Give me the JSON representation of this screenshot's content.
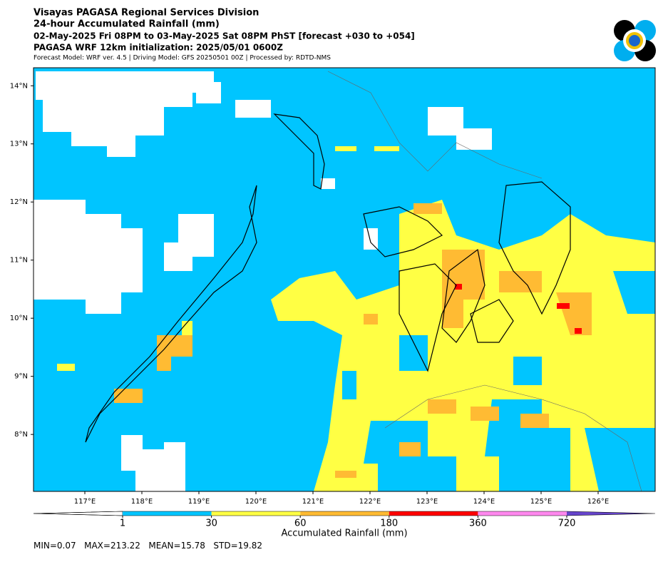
{
  "header": {
    "lines": [
      "Visayas PAGASA Regional Services Division",
      "24-hour Accumulated Rainfall (mm)",
      "02-May-2025 Fri 08PM to 03-May-2025 Sat 08PM PhST [forecast +030 to +054]",
      "PAGASA WRF 12km initialization: 2025/05/01 0600Z"
    ],
    "model_line": "Forecast Model: WRF ver. 4.5 | Driving Model: GFS 20250501 00Z | Processed by: RDTD-NMS"
  },
  "map": {
    "xlim": [
      116.1,
      127.0
    ],
    "ylim": [
      7.02,
      14.31
    ],
    "xticks": [
      {
        "value": 117,
        "label": "117°E"
      },
      {
        "value": 118,
        "label": "118°E"
      },
      {
        "value": 119,
        "label": "119°E"
      },
      {
        "value": 120,
        "label": "120°E"
      },
      {
        "value": 121,
        "label": "121°E"
      },
      {
        "value": 122,
        "label": "122°E"
      },
      {
        "value": 123,
        "label": "123°E"
      },
      {
        "value": 124,
        "label": "124°E"
      },
      {
        "value": 125,
        "label": "125°E"
      },
      {
        "value": 126,
        "label": "126°E"
      }
    ],
    "yticks": [
      {
        "value": 8,
        "label": "8°N"
      },
      {
        "value": 9,
        "label": "9°N"
      },
      {
        "value": 10,
        "label": "10°N"
      },
      {
        "value": 11,
        "label": "11°N"
      },
      {
        "value": 12,
        "label": "12°N"
      },
      {
        "value": 13,
        "label": "13°N"
      },
      {
        "value": 14,
        "label": "14°N"
      }
    ]
  },
  "colorbar": {
    "title": "Accumulated Rainfall (mm)",
    "ticks": [
      1,
      30,
      60,
      180,
      360,
      720
    ],
    "under_color": "#ffffff",
    "colors": [
      "#00c5ff",
      "#ffff44",
      "#ffbb33",
      "#ff0000",
      "#ff88ee"
    ],
    "over_color": "#6644cc"
  },
  "stats": [
    "MIN=0.07",
    "MAX=213.22",
    "MEAN=15.78",
    "STD=19.82"
  ]
}
